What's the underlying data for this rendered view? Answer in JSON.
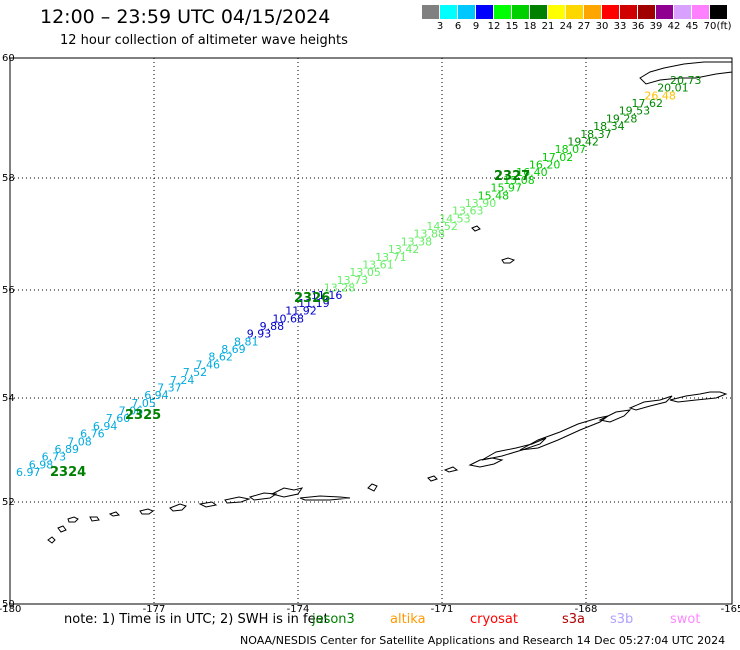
{
  "title": "12:00 – 23:59 UTC 04/15/2024",
  "subtitle": "12 hour collection of altimeter wave heights",
  "legend": {
    "unit": "(ft)",
    "colors": [
      "#808080",
      "#00ffff",
      "#00c8ff",
      "#0000ff",
      "#00ff00",
      "#00d000",
      "#008000",
      "#ffff00",
      "#ffd700",
      "#ffa500",
      "#ff0000",
      "#d00000",
      "#a00000",
      "#900090",
      "#d8a0ff",
      "#ff80ff",
      "#000000"
    ],
    "labels": [
      "3",
      "6",
      "9",
      "12",
      "15",
      "18",
      "21",
      "24",
      "27",
      "30",
      "33",
      "36",
      "39",
      "42",
      "45",
      "70"
    ]
  },
  "axes": {
    "lon_labels": [
      "-180",
      "-177",
      "-174",
      "-171",
      "-168",
      "-165"
    ],
    "lat_labels": [
      "60",
      "58",
      "56",
      "54",
      "52",
      "50"
    ]
  },
  "wave_heights": [
    {
      "v": "6.97",
      "c": "#00aadd"
    },
    {
      "v": "6.98",
      "c": "#00aadd"
    },
    {
      "v": "6.73",
      "c": "#00aadd"
    },
    {
      "v": "6.89",
      "c": "#00aadd"
    },
    {
      "v": "7.08",
      "c": "#00aadd"
    },
    {
      "v": "6.76",
      "c": "#00aadd"
    },
    {
      "v": "6.94",
      "c": "#00aadd"
    },
    {
      "v": "7.60",
      "c": "#00aadd"
    },
    {
      "v": "7.06",
      "c": "#00aadd"
    },
    {
      "v": "7.05",
      "c": "#00aadd"
    },
    {
      "v": "6.94",
      "c": "#00aadd"
    },
    {
      "v": "7.37",
      "c": "#00aadd"
    },
    {
      "v": "7.24",
      "c": "#00aadd"
    },
    {
      "v": "7.52",
      "c": "#00aadd"
    },
    {
      "v": "7.46",
      "c": "#00aadd"
    },
    {
      "v": "8.62",
      "c": "#00aadd"
    },
    {
      "v": "8.69",
      "c": "#00aadd"
    },
    {
      "v": "8.81",
      "c": "#00aadd"
    },
    {
      "v": "9.93",
      "c": "#0000cc"
    },
    {
      "v": "9.88",
      "c": "#0000cc"
    },
    {
      "v": "10.68",
      "c": "#0000cc"
    },
    {
      "v": "11.92",
      "c": "#0000cc"
    },
    {
      "v": "11.19",
      "c": "#0000cc"
    },
    {
      "v": "11.16",
      "c": "#0000cc"
    },
    {
      "v": "13.28",
      "c": "#66ee66"
    },
    {
      "v": "13.73",
      "c": "#66ee66"
    },
    {
      "v": "13.05",
      "c": "#66ee66"
    },
    {
      "v": "13.61",
      "c": "#66ee66"
    },
    {
      "v": "13.71",
      "c": "#66ee66"
    },
    {
      "v": "13.42",
      "c": "#66ee66"
    },
    {
      "v": "13.38",
      "c": "#66ee66"
    },
    {
      "v": "13.88",
      "c": "#66ee66"
    },
    {
      "v": "14.52",
      "c": "#66ee66"
    },
    {
      "v": "14.53",
      "c": "#66ee66"
    },
    {
      "v": "13.63",
      "c": "#66ee66"
    },
    {
      "v": "13.90",
      "c": "#66ee66"
    },
    {
      "v": "15.48",
      "c": "#00cc00"
    },
    {
      "v": "15.97",
      "c": "#00cc00"
    },
    {
      "v": "15.08",
      "c": "#00cc00"
    },
    {
      "v": "16.40",
      "c": "#00cc00"
    },
    {
      "v": "16.20",
      "c": "#00cc00"
    },
    {
      "v": "17.02",
      "c": "#00cc00"
    },
    {
      "v": "18.07",
      "c": "#00cc00"
    },
    {
      "v": "19.42",
      "c": "#008800"
    },
    {
      "v": "18.37",
      "c": "#008800"
    },
    {
      "v": "18.34",
      "c": "#008800"
    },
    {
      "v": "19.28",
      "c": "#008800"
    },
    {
      "v": "19.53",
      "c": "#008800"
    },
    {
      "v": "17.62",
      "c": "#008800"
    },
    {
      "v": "26.48",
      "c": "#ffc000"
    },
    {
      "v": "20.01",
      "c": "#008800"
    },
    {
      "v": "20.73",
      "c": "#008800"
    }
  ],
  "pass_labels": [
    "2324",
    "2325",
    "2326",
    "2327"
  ],
  "note": "note: 1) Time is in UTC; 2) SWH is in feet",
  "satellites": [
    {
      "name": "jason3",
      "color": "#008000"
    },
    {
      "name": "altika",
      "color": "#ff9900"
    },
    {
      "name": "cryosat",
      "color": "#ff0000"
    },
    {
      "name": "s3a",
      "color": "#b00000"
    },
    {
      "name": "s3b",
      "color": "#b0a0ff"
    },
    {
      "name": "swot",
      "color": "#ff88ff"
    }
  ],
  "footer": "NOAA/NESDIS Center for Satellite Applications and Research    14 Dec 05:27:04 UTC 2024"
}
